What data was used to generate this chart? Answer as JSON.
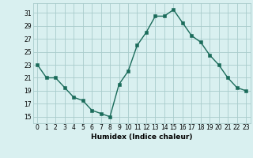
{
  "x": [
    0,
    1,
    2,
    3,
    4,
    5,
    6,
    7,
    8,
    9,
    10,
    11,
    12,
    13,
    14,
    15,
    16,
    17,
    18,
    19,
    20,
    21,
    22,
    23
  ],
  "y": [
    23,
    21,
    21,
    19.5,
    18,
    17.5,
    16,
    15.5,
    15,
    20,
    22,
    26,
    28,
    30.5,
    30.5,
    31.5,
    29.5,
    27.5,
    26.5,
    24.5,
    23,
    21,
    19.5,
    19
  ],
  "line_color": "#1a6b5a",
  "marker_color": "#1a6b5a",
  "bg_color": "#d9f0f0",
  "grid_color": "#a8cccc",
  "xlabel": "Humidex (Indice chaleur)",
  "xlim": [
    -0.5,
    23.5
  ],
  "ylim": [
    14,
    32.5
  ],
  "yticks": [
    15,
    17,
    19,
    21,
    23,
    25,
    27,
    29,
    31
  ],
  "xticks": [
    0,
    1,
    2,
    3,
    4,
    5,
    6,
    7,
    8,
    9,
    10,
    11,
    12,
    13,
    14,
    15,
    16,
    17,
    18,
    19,
    20,
    21,
    22,
    23
  ],
  "xtick_labels": [
    "0",
    "1",
    "2",
    "3",
    "4",
    "5",
    "6",
    "7",
    "8",
    "9",
    "10",
    "11",
    "12",
    "13",
    "14",
    "15",
    "16",
    "17",
    "18",
    "19",
    "20",
    "21",
    "22",
    "23"
  ],
  "ytick_labels": [
    "15",
    "17",
    "19",
    "21",
    "23",
    "25",
    "27",
    "29",
    "31"
  ],
  "marker_size": 2.5,
  "line_width": 1.0,
  "xlabel_fontsize": 6.5,
  "tick_fontsize": 5.5
}
